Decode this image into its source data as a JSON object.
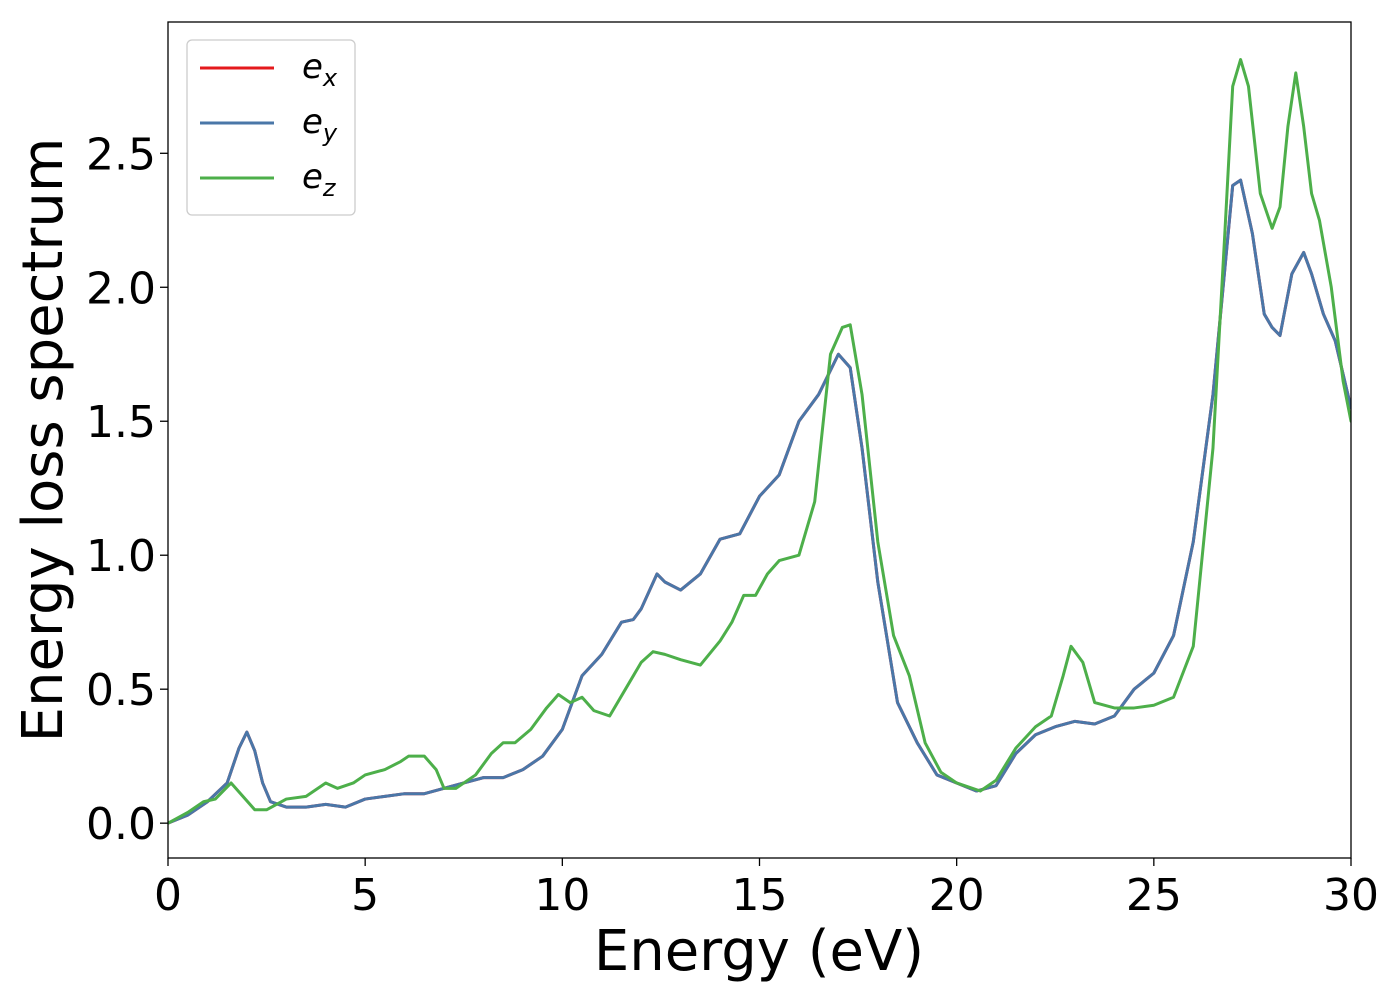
{
  "chart_data": {
    "type": "line",
    "title": "",
    "xlabel": "Energy (eV)",
    "ylabel": "Energy loss spectrum",
    "xlim": [
      0,
      30
    ],
    "ylim": [
      -0.13,
      2.99
    ],
    "xticks": [
      0,
      5,
      10,
      15,
      20,
      25,
      30
    ],
    "xtick_labels": [
      "0",
      "5",
      "10",
      "15",
      "20",
      "25",
      "30"
    ],
    "yticks": [
      0.0,
      0.5,
      1.0,
      1.5,
      2.0,
      2.5
    ],
    "ytick_labels": [
      "0.0",
      "0.5",
      "1.0",
      "1.5",
      "2.0",
      "2.5"
    ],
    "grid": false,
    "legend_position": "top-left",
    "series": [
      {
        "name": "e_x",
        "label_base": "e",
        "label_sub": "x",
        "color": "#e41a1c",
        "x": [
          0,
          0.5,
          1.0,
          1.5,
          1.8,
          2.0,
          2.2,
          2.4,
          2.6,
          3.0,
          3.5,
          4.0,
          4.5,
          5.0,
          5.5,
          6.0,
          6.5,
          7.0,
          7.5,
          8.0,
          8.5,
          9.0,
          9.5,
          10.0,
          10.5,
          11.0,
          11.5,
          11.8,
          12.0,
          12.4,
          12.6,
          13.0,
          13.5,
          14.0,
          14.5,
          15.0,
          15.5,
          16.0,
          16.5,
          17.0,
          17.3,
          17.6,
          18.0,
          18.5,
          19.0,
          19.5,
          20.0,
          20.5,
          21.0,
          21.5,
          22.0,
          22.5,
          23.0,
          23.5,
          24.0,
          24.5,
          25.0,
          25.5,
          26.0,
          26.5,
          27.0,
          27.2,
          27.5,
          27.8,
          28.0,
          28.2,
          28.5,
          28.8,
          29.0,
          29.3,
          29.6,
          30.0
        ],
        "y": [
          0.0,
          0.03,
          0.08,
          0.15,
          0.28,
          0.34,
          0.27,
          0.15,
          0.08,
          0.06,
          0.06,
          0.07,
          0.06,
          0.09,
          0.1,
          0.11,
          0.11,
          0.13,
          0.15,
          0.17,
          0.17,
          0.2,
          0.25,
          0.35,
          0.55,
          0.63,
          0.75,
          0.76,
          0.8,
          0.93,
          0.9,
          0.87,
          0.93,
          1.06,
          1.08,
          1.22,
          1.3,
          1.5,
          1.6,
          1.75,
          1.7,
          1.4,
          0.9,
          0.45,
          0.3,
          0.18,
          0.15,
          0.12,
          0.14,
          0.26,
          0.33,
          0.36,
          0.38,
          0.37,
          0.4,
          0.5,
          0.56,
          0.7,
          1.05,
          1.6,
          2.38,
          2.4,
          2.2,
          1.9,
          1.85,
          1.82,
          2.05,
          2.13,
          2.05,
          1.9,
          1.8,
          1.55
        ]
      },
      {
        "name": "e_y",
        "label_base": "e",
        "label_sub": "y",
        "color": "#4a77a8",
        "x": [
          0,
          0.5,
          1.0,
          1.5,
          1.8,
          2.0,
          2.2,
          2.4,
          2.6,
          3.0,
          3.5,
          4.0,
          4.5,
          5.0,
          5.5,
          6.0,
          6.5,
          7.0,
          7.5,
          8.0,
          8.5,
          9.0,
          9.5,
          10.0,
          10.5,
          11.0,
          11.5,
          11.8,
          12.0,
          12.4,
          12.6,
          13.0,
          13.5,
          14.0,
          14.5,
          15.0,
          15.5,
          16.0,
          16.5,
          17.0,
          17.3,
          17.6,
          18.0,
          18.5,
          19.0,
          19.5,
          20.0,
          20.5,
          21.0,
          21.5,
          22.0,
          22.5,
          23.0,
          23.5,
          24.0,
          24.5,
          25.0,
          25.5,
          26.0,
          26.5,
          27.0,
          27.2,
          27.5,
          27.8,
          28.0,
          28.2,
          28.5,
          28.8,
          29.0,
          29.3,
          29.6,
          30.0
        ],
        "y": [
          0.0,
          0.03,
          0.08,
          0.15,
          0.28,
          0.34,
          0.27,
          0.15,
          0.08,
          0.06,
          0.06,
          0.07,
          0.06,
          0.09,
          0.1,
          0.11,
          0.11,
          0.13,
          0.15,
          0.17,
          0.17,
          0.2,
          0.25,
          0.35,
          0.55,
          0.63,
          0.75,
          0.76,
          0.8,
          0.93,
          0.9,
          0.87,
          0.93,
          1.06,
          1.08,
          1.22,
          1.3,
          1.5,
          1.6,
          1.75,
          1.7,
          1.4,
          0.9,
          0.45,
          0.3,
          0.18,
          0.15,
          0.12,
          0.14,
          0.26,
          0.33,
          0.36,
          0.38,
          0.37,
          0.4,
          0.5,
          0.56,
          0.7,
          1.05,
          1.6,
          2.38,
          2.4,
          2.2,
          1.9,
          1.85,
          1.82,
          2.05,
          2.13,
          2.05,
          1.9,
          1.8,
          1.55
        ]
      },
      {
        "name": "e_z",
        "label_base": "e",
        "label_sub": "z",
        "color": "#4daf4a",
        "x": [
          0,
          0.5,
          0.9,
          1.2,
          1.6,
          1.9,
          2.2,
          2.5,
          3.0,
          3.5,
          4.0,
          4.3,
          4.7,
          5.0,
          5.5,
          5.9,
          6.1,
          6.5,
          6.8,
          7.0,
          7.3,
          7.8,
          8.2,
          8.5,
          8.8,
          9.2,
          9.6,
          9.9,
          10.2,
          10.5,
          10.8,
          11.2,
          11.6,
          12.0,
          12.3,
          12.6,
          13.0,
          13.5,
          14.0,
          14.3,
          14.6,
          14.9,
          15.2,
          15.5,
          16.0,
          16.4,
          16.8,
          17.1,
          17.3,
          17.6,
          18.0,
          18.4,
          18.8,
          19.2,
          19.6,
          20.0,
          20.6,
          21.0,
          21.5,
          22.0,
          22.4,
          22.7,
          22.9,
          23.2,
          23.5,
          24.0,
          24.5,
          25.0,
          25.5,
          26.0,
          26.5,
          26.8,
          27.0,
          27.2,
          27.4,
          27.7,
          28.0,
          28.2,
          28.4,
          28.6,
          28.8,
          29.0,
          29.2,
          29.5,
          29.8,
          30.0
        ],
        "y": [
          0.0,
          0.04,
          0.08,
          0.09,
          0.15,
          0.1,
          0.05,
          0.05,
          0.09,
          0.1,
          0.15,
          0.13,
          0.15,
          0.18,
          0.2,
          0.23,
          0.25,
          0.25,
          0.2,
          0.13,
          0.13,
          0.18,
          0.26,
          0.3,
          0.3,
          0.35,
          0.43,
          0.48,
          0.45,
          0.47,
          0.42,
          0.4,
          0.5,
          0.6,
          0.64,
          0.63,
          0.61,
          0.59,
          0.68,
          0.75,
          0.85,
          0.85,
          0.93,
          0.98,
          1.0,
          1.2,
          1.75,
          1.85,
          1.86,
          1.6,
          1.05,
          0.7,
          0.55,
          0.3,
          0.19,
          0.15,
          0.12,
          0.16,
          0.28,
          0.36,
          0.4,
          0.55,
          0.66,
          0.6,
          0.45,
          0.43,
          0.43,
          0.44,
          0.47,
          0.66,
          1.4,
          2.2,
          2.75,
          2.85,
          2.75,
          2.35,
          2.22,
          2.3,
          2.6,
          2.8,
          2.6,
          2.35,
          2.25,
          2.0,
          1.65,
          1.5
        ]
      }
    ]
  }
}
